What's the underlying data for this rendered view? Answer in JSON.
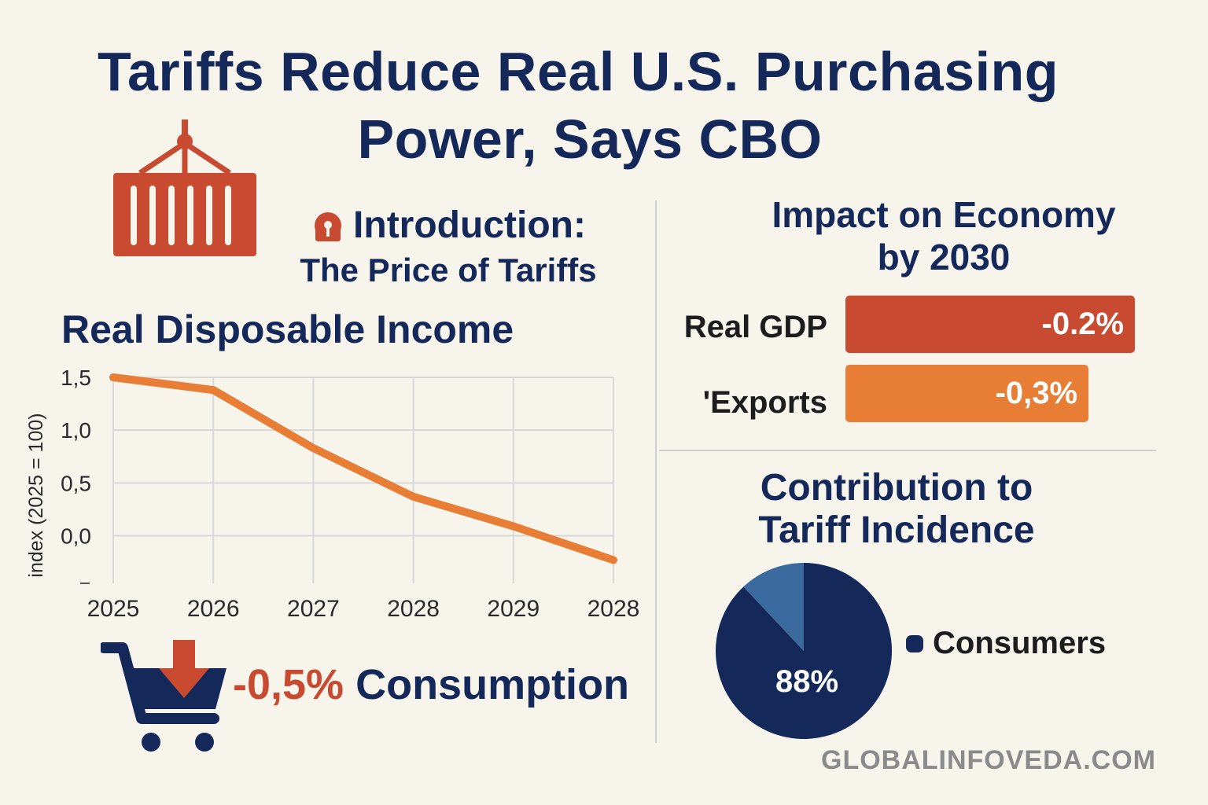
{
  "title": {
    "line1": "Tariffs Reduce Real U.S. Purchasing",
    "line2": "Power, Says CBO"
  },
  "intro": {
    "heading": "Introduction:",
    "subheading": "The Price of Tariffs",
    "icon": "lock-icon"
  },
  "icons": {
    "container": "shipping-container-icon",
    "cart": "shopping-cart-icon",
    "arrow": "down-arrow-icon"
  },
  "colors": {
    "navy": "#14295a",
    "red": "#c84a30",
    "orange": "#e87e35",
    "blue": "#3a6a9e",
    "background": "#f7f4ec"
  },
  "chart_data": [
    {
      "type": "line",
      "title": "Real Disposable Income",
      "ylabel": "index (2025 = 100)",
      "xlabel": "",
      "x": [
        "2025",
        "2026",
        "2027",
        "2028",
        "2029",
        "2028"
      ],
      "yticks": [
        "1,5",
        "1,0",
        "0,5",
        "0,0"
      ],
      "ylim": [
        -0.45,
        1.5
      ],
      "series": [
        {
          "values": [
            1.5,
            1.38,
            0.83,
            0.37,
            0.09,
            -0.23
          ]
        }
      ],
      "grid": true
    },
    {
      "type": "bar",
      "title": "Impact on Economy by 2030",
      "title_line1": "Impact on Economy",
      "title_line2": "by 2030",
      "categories": [
        "Real GDP",
        "'Exports"
      ],
      "values": [
        -0.2,
        -0.3
      ],
      "value_labels": [
        "-0.2%",
        "-0,3%"
      ],
      "colors": [
        "#c84a30",
        "#e87e35"
      ]
    },
    {
      "type": "pie",
      "title": "Contribution to Tariff Incidence",
      "title_line1": "Contribution to",
      "title_line2": "Tariff Incidence",
      "slices": [
        {
          "label": "Consumers",
          "value": 88,
          "value_label": "88%",
          "color": "#14295a"
        },
        {
          "label": "",
          "value": 12,
          "value_label": "",
          "color": "#3a6a9e"
        }
      ],
      "legend": [
        "Consumers"
      ]
    }
  ],
  "consumption": {
    "value": "-0,5%",
    "label": "Consumption"
  },
  "footer": "GLOBALINFOVEDA.COM"
}
